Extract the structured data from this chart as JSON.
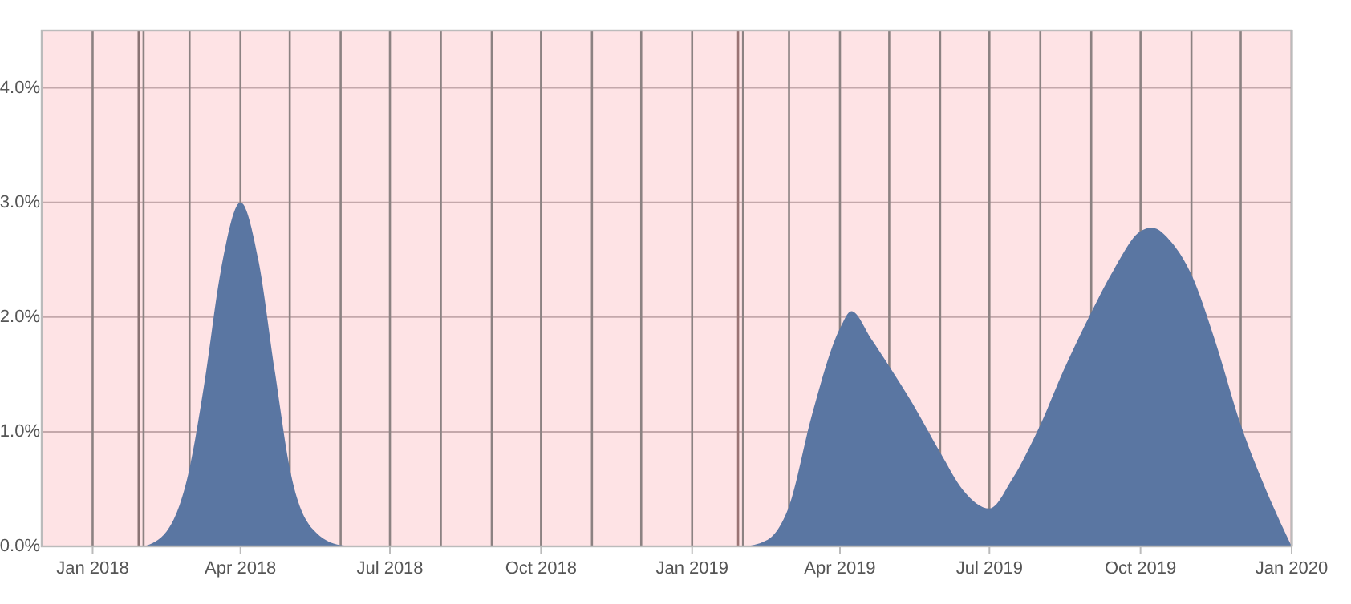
{
  "chart_data": {
    "type": "area",
    "xlim": [
      "2017-12-01",
      "2020-01-01"
    ],
    "xticks": [
      {
        "value": "2018-01-01",
        "label": "Jan 2018"
      },
      {
        "value": "2018-02-01",
        "label": null
      },
      {
        "value": "2018-03-01",
        "label": null
      },
      {
        "value": "2018-04-01",
        "label": "Apr 2018"
      },
      {
        "value": "2018-05-01",
        "label": null
      },
      {
        "value": "2018-06-01",
        "label": null
      },
      {
        "value": "2018-07-01",
        "label": "Jul 2018"
      },
      {
        "value": "2018-08-01",
        "label": null
      },
      {
        "value": "2018-09-01",
        "label": null
      },
      {
        "value": "2018-10-01",
        "label": "Oct 2018"
      },
      {
        "value": "2018-11-01",
        "label": null
      },
      {
        "value": "2018-12-01",
        "label": null
      },
      {
        "value": "2019-01-01",
        "label": "Jan 2019"
      },
      {
        "value": "2019-02-01",
        "label": null
      },
      {
        "value": "2019-03-01",
        "label": null
      },
      {
        "value": "2019-04-01",
        "label": "Apr 2019"
      },
      {
        "value": "2019-05-01",
        "label": null
      },
      {
        "value": "2019-06-01",
        "label": null
      },
      {
        "value": "2019-07-01",
        "label": "Jul 2019"
      },
      {
        "value": "2019-08-01",
        "label": null
      },
      {
        "value": "2019-09-01",
        "label": null
      },
      {
        "value": "2019-10-01",
        "label": "Oct 2019"
      },
      {
        "value": "2019-11-01",
        "label": null
      },
      {
        "value": "2019-12-01",
        "label": null
      },
      {
        "value": "2020-01-01",
        "label": "Jan 2020"
      }
    ],
    "ylim": [
      0,
      4.5
    ],
    "yticks": [
      {
        "value": 0,
        "label": "0.0%"
      },
      {
        "value": 1,
        "label": "1.0%"
      },
      {
        "value": 2,
        "label": "2.0%"
      },
      {
        "value": 3,
        "label": "3.0%"
      },
      {
        "value": 4,
        "label": "4.0%"
      }
    ],
    "grid": true,
    "ref_lines": [
      {
        "axis": "x",
        "value": "2018-01-29",
        "color": "#8a7474"
      },
      {
        "axis": "x",
        "value": "2019-01-29",
        "color": "#9a7474"
      }
    ],
    "series": [
      {
        "color": "#5a76a2",
        "x": [
          "2018-02-01",
          "2018-02-15",
          "2018-03-01",
          "2018-03-10",
          "2018-03-20",
          "2018-04-01",
          "2018-04-12",
          "2018-04-22",
          "2018-05-01",
          "2018-05-15",
          "2018-06-01",
          "2018-06-10",
          "2019-02-01",
          "2019-02-15",
          "2019-03-01",
          "2019-03-15",
          "2019-04-01",
          "2019-04-08",
          "2019-04-20",
          "2019-05-01",
          "2019-05-15",
          "2019-06-01",
          "2019-06-15",
          "2019-07-01",
          "2019-07-15",
          "2019-08-01",
          "2019-08-15",
          "2019-09-01",
          "2019-09-15",
          "2019-10-01",
          "2019-10-08",
          "2019-10-20",
          "2019-11-01",
          "2019-11-15",
          "2019-12-01",
          "2019-12-15",
          "2020-01-01"
        ],
        "values": [
          0,
          0.13,
          0.68,
          1.42,
          2.4,
          3.0,
          2.49,
          1.52,
          0.68,
          0.15,
          0.01,
          0,
          0,
          0.05,
          0.35,
          1.15,
          1.9,
          2.05,
          1.81,
          1.57,
          1.25,
          0.82,
          0.49,
          0.33,
          0.59,
          1.06,
          1.53,
          2.04,
          2.42,
          2.75,
          2.78,
          2.65,
          2.37,
          1.81,
          1.06,
          0.54,
          0
        ]
      }
    ]
  }
}
